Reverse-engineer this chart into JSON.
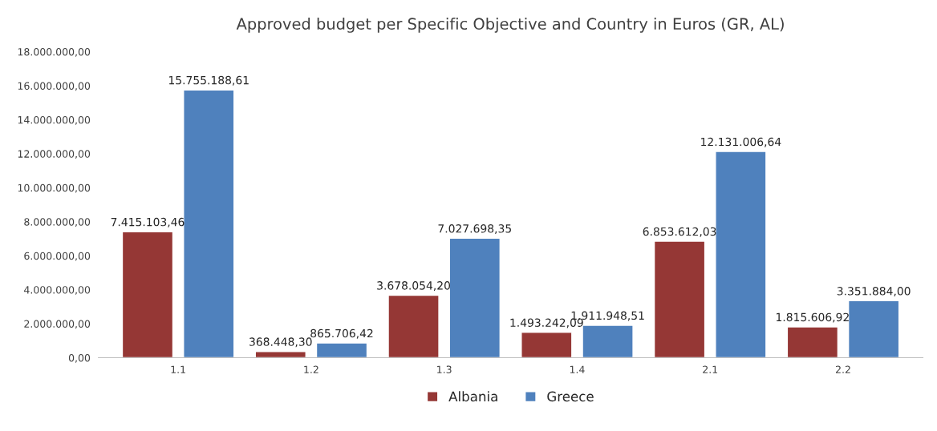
{
  "chart_data": {
    "type": "bar",
    "title": "Approved budget per Specific Objective and Country in Euros (GR, AL)",
    "categories": [
      "1.1",
      "1.2",
      "1.3",
      "1.4",
      "2.1",
      "2.2"
    ],
    "series": [
      {
        "name": "Albania",
        "color": "#953735",
        "values": [
          7415103.46,
          368448.3,
          3678054.2,
          1493242.09,
          6853612.03,
          1815606.92
        ],
        "value_labels": [
          "7.415.103,46",
          "368.448,30",
          "3.678.054,20",
          "1.493.242,09",
          "6.853.612,03",
          "1.815.606,92"
        ]
      },
      {
        "name": "Greece",
        "color": "#4f81bd",
        "values": [
          15755188.61,
          865706.42,
          7027698.35,
          1911948.51,
          12131006.64,
          3351884.0
        ],
        "value_labels": [
          "15.755.188,61",
          "865.706,42",
          "7.027.698,35",
          "1.911.948,51",
          "12.131.006,64",
          "3.351.884,00"
        ]
      }
    ],
    "ylim": [
      0,
      18000000
    ],
    "yticks": [
      {
        "value": 0,
        "label": "0,00"
      },
      {
        "value": 2000000,
        "label": "2.000.000,00"
      },
      {
        "value": 4000000,
        "label": "4.000.000,00"
      },
      {
        "value": 6000000,
        "label": "6.000.000,00"
      },
      {
        "value": 8000000,
        "label": "8.000.000,00"
      },
      {
        "value": 10000000,
        "label": "10.000.000,00"
      },
      {
        "value": 12000000,
        "label": "12.000.000,00"
      },
      {
        "value": 14000000,
        "label": "14.000.000,00"
      },
      {
        "value": 16000000,
        "label": "16.000.000,00"
      },
      {
        "value": 18000000,
        "label": "18.000.000,00"
      }
    ],
    "grid": false,
    "legend": "bottom"
  }
}
